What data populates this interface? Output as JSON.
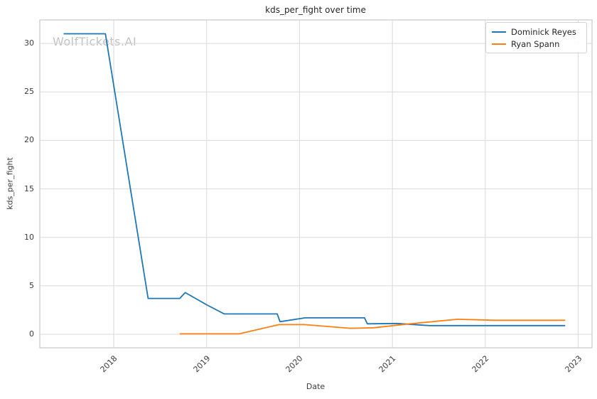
{
  "watermark": "WolfTickets.AI",
  "chart_data": {
    "type": "line",
    "title": "kds_per_fight over time",
    "xlabel": "Date",
    "ylabel": "kds_per_fight",
    "xlim": [
      2017.204,
      2023.149
    ],
    "ylim": [
      -1.39,
      32.43
    ],
    "xticks": [
      2018,
      2019,
      2020,
      2021,
      2022,
      2023
    ],
    "yticks": [
      0,
      5,
      10,
      15,
      20,
      25,
      30
    ],
    "grid": true,
    "grid_color": "#d9d9d9",
    "spine_color": "#c9c9c9",
    "legend_position": "upper right",
    "series": [
      {
        "name": "Dominick Reyes",
        "color": "#1f77b4",
        "points": [
          [
            2017.46,
            31
          ],
          [
            2017.91,
            31
          ],
          [
            2018.37,
            3.7
          ],
          [
            2018.71,
            3.7
          ],
          [
            2018.77,
            4.3
          ],
          [
            2019.0,
            3.05
          ],
          [
            2019.19,
            2.1
          ],
          [
            2019.76,
            2.1
          ],
          [
            2019.79,
            1.3
          ],
          [
            2020.06,
            1.7
          ],
          [
            2020.7,
            1.7
          ],
          [
            2020.73,
            1.08
          ],
          [
            2021.05,
            1.12
          ],
          [
            2021.4,
            0.9
          ],
          [
            2022.86,
            0.9
          ]
        ]
      },
      {
        "name": "Ryan Spann",
        "color": "#ff7f0e",
        "points": [
          [
            2018.71,
            0.05
          ],
          [
            2019.35,
            0.05
          ],
          [
            2019.78,
            1.0
          ],
          [
            2020.05,
            1.0
          ],
          [
            2020.55,
            0.62
          ],
          [
            2020.8,
            0.68
          ],
          [
            2021.16,
            1.05
          ],
          [
            2021.7,
            1.55
          ],
          [
            2022.1,
            1.45
          ],
          [
            2022.86,
            1.45
          ]
        ]
      }
    ]
  }
}
